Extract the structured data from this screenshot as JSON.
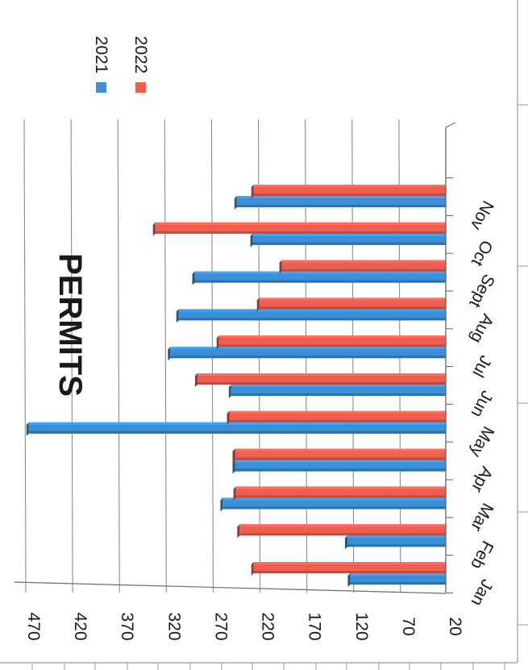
{
  "chart_data": {
    "type": "bar",
    "orientation": "rotated-90",
    "title": "PERMITS",
    "categories": [
      "Jan",
      "Feb",
      "Mar",
      "Apr",
      "May",
      "Jun",
      "Jul",
      "Aug",
      "Sept",
      "Oct",
      "Nov"
    ],
    "series": [
      {
        "name": "2021",
        "color": "#3a8fd6",
        "values": [
          122,
          125,
          258,
          245,
          465,
          249,
          314,
          305,
          288,
          226,
          243
        ]
      },
      {
        "name": "2022",
        "color": "#ee5f50",
        "values": [
          225,
          240,
          244,
          245,
          251,
          285,
          262,
          219,
          195,
          330,
          225
        ]
      }
    ],
    "y_ticks": [
      "20",
      "70",
      "120",
      "170",
      "220",
      "270",
      "320",
      "370",
      "420",
      "470"
    ],
    "ylim": [
      20,
      470
    ],
    "grid": true,
    "legend_position": "top"
  }
}
